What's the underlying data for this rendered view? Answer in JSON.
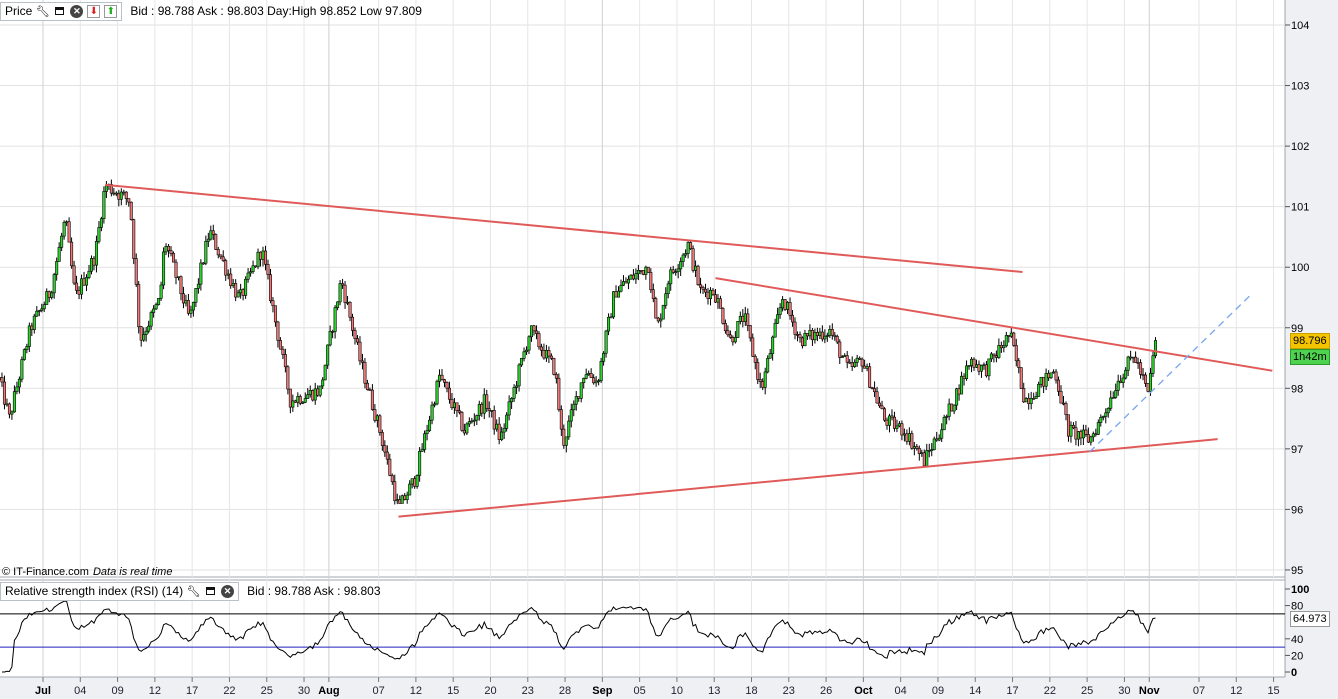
{
  "price_panel": {
    "title": "Price",
    "quote": "Bid : 98.788 Ask : 98.803 Day:High 98.852 Low 97.809",
    "copyright": "© IT-Finance.com",
    "realtime_note": "Data is real time",
    "last_price": "98.796",
    "countdown": "1h42m"
  },
  "rsi_panel": {
    "title": "Relative strength index (RSI) (14)",
    "quote": "Bid : 98.788 Ask : 98.803",
    "last_value": "64.973"
  },
  "icons": [
    "wrench-icon",
    "window-icon",
    "close-icon",
    "move-down-icon",
    "move-up-icon"
  ],
  "colors": {
    "up": "#2ad42a",
    "down": "#f07878",
    "trendline": "#e05a5a",
    "dashed": "#7aa6f0",
    "rsi_upper": "#000000",
    "rsi_lower": "#2020c0",
    "last_price_bg": "#f5c400",
    "countdown_bg": "#4fd24f"
  },
  "chart_data": {
    "type": "candlestick",
    "x_unit": "trading days since Jul 01",
    "xlim": [
      -3.5,
      100
    ],
    "ylim": [
      94.9,
      104.3
    ],
    "y_ticks": [
      95,
      96,
      97,
      98,
      99,
      100,
      101,
      102,
      103,
      104
    ],
    "x_ticks": [
      {
        "x": 0,
        "label": "Jul",
        "major": true
      },
      {
        "x": 3,
        "label": "04"
      },
      {
        "x": 6,
        "label": "09"
      },
      {
        "x": 9,
        "label": "12"
      },
      {
        "x": 12,
        "label": "17"
      },
      {
        "x": 15,
        "label": "22"
      },
      {
        "x": 18,
        "label": "25"
      },
      {
        "x": 21,
        "label": "30"
      },
      {
        "x": 23,
        "label": "Aug",
        "major": true
      },
      {
        "x": 27,
        "label": "07"
      },
      {
        "x": 30,
        "label": "12"
      },
      {
        "x": 33,
        "label": "15"
      },
      {
        "x": 36,
        "label": "20"
      },
      {
        "x": 39,
        "label": "23"
      },
      {
        "x": 42,
        "label": "28"
      },
      {
        "x": 45,
        "label": "Sep",
        "major": true
      },
      {
        "x": 48,
        "label": "05"
      },
      {
        "x": 51,
        "label": "10"
      },
      {
        "x": 54,
        "label": "13"
      },
      {
        "x": 57,
        "label": "18"
      },
      {
        "x": 60,
        "label": "23"
      },
      {
        "x": 63,
        "label": "26"
      },
      {
        "x": 66,
        "label": "Oct",
        "major": true
      },
      {
        "x": 69,
        "label": "04"
      },
      {
        "x": 72,
        "label": "09"
      },
      {
        "x": 75,
        "label": "14"
      },
      {
        "x": 78,
        "label": "17"
      },
      {
        "x": 81,
        "label": "22"
      },
      {
        "x": 84,
        "label": "25"
      },
      {
        "x": 87,
        "label": "30"
      },
      {
        "x": 89,
        "label": "Nov",
        "major": true
      },
      {
        "x": 93,
        "label": "07"
      },
      {
        "x": 96,
        "label": "12"
      },
      {
        "x": 99,
        "label": "15"
      }
    ],
    "price_path": [
      [
        -3.5,
        98.14
      ],
      [
        -2.7,
        97.5
      ],
      [
        -1,
        99.0
      ],
      [
        0.6,
        99.6
      ],
      [
        1.8,
        100.8
      ],
      [
        2.6,
        99.5
      ],
      [
        4.2,
        100.2
      ],
      [
        5,
        101.36
      ],
      [
        7,
        101.1
      ],
      [
        7.8,
        98.8
      ],
      [
        9.4,
        99.46
      ],
      [
        9.8,
        100.45
      ],
      [
        11.8,
        99.13
      ],
      [
        13.4,
        100.6
      ],
      [
        15.8,
        99.46
      ],
      [
        17.6,
        100.3
      ],
      [
        19.9,
        97.8
      ],
      [
        22.3,
        97.97
      ],
      [
        24,
        99.8
      ],
      [
        25.5,
        98.47
      ],
      [
        27.1,
        97.3
      ],
      [
        28.6,
        96.0
      ],
      [
        29.9,
        96.5
      ],
      [
        31.9,
        98.2
      ],
      [
        33.9,
        97.3
      ],
      [
        35.6,
        97.8
      ],
      [
        36.8,
        97.15
      ],
      [
        39.2,
        98.96
      ],
      [
        41.2,
        98.3
      ],
      [
        41.8,
        97.06
      ],
      [
        43.6,
        98.3
      ],
      [
        44.6,
        98.1
      ],
      [
        46,
        99.6
      ],
      [
        48.7,
        100.04
      ],
      [
        49.4,
        98.96
      ],
      [
        50.3,
        99.8
      ],
      [
        51.9,
        100.37
      ],
      [
        52.9,
        99.6
      ],
      [
        54,
        99.6
      ],
      [
        55.3,
        98.8
      ],
      [
        56.4,
        99.2
      ],
      [
        57.8,
        97.97
      ],
      [
        59.5,
        99.5
      ],
      [
        60.9,
        98.8
      ],
      [
        63.3,
        98.96
      ],
      [
        64.8,
        98.3
      ],
      [
        65.9,
        98.47
      ],
      [
        67.7,
        97.48
      ],
      [
        69.3,
        97.3
      ],
      [
        70.9,
        96.8
      ],
      [
        72.6,
        97.48
      ],
      [
        74.6,
        98.47
      ],
      [
        75.8,
        98.3
      ],
      [
        77.8,
        98.9
      ],
      [
        79,
        97.8
      ],
      [
        81.4,
        98.3
      ],
      [
        82.5,
        97.3
      ],
      [
        84.2,
        97.15
      ],
      [
        85.4,
        97.6
      ],
      [
        86.5,
        98.14
      ],
      [
        87.8,
        98.55
      ],
      [
        88.9,
        97.9
      ],
      [
        89.5,
        98.79
      ]
    ],
    "trendlines": [
      {
        "name": "upper-resistance",
        "from": [
          5,
          101.36
        ],
        "to": [
          78.8,
          99.92
        ],
        "style": "solid"
      },
      {
        "name": "inner-resistance",
        "from": [
          54.1,
          99.82
        ],
        "to": [
          98.9,
          98.29
        ],
        "style": "solid"
      },
      {
        "name": "lower-support",
        "from": [
          28.6,
          95.88
        ],
        "to": [
          94.5,
          97.16
        ],
        "style": "solid"
      },
      {
        "name": "rising-support",
        "from": [
          84.2,
          96.95
        ],
        "to": [
          97.3,
          99.57
        ],
        "style": "dashed"
      }
    ],
    "rsi": {
      "period": 14,
      "ylim": [
        0,
        100
      ],
      "ticks": [
        0,
        20,
        40,
        80,
        100
      ],
      "levels": [
        70,
        30
      ],
      "last": 64.973
    }
  }
}
